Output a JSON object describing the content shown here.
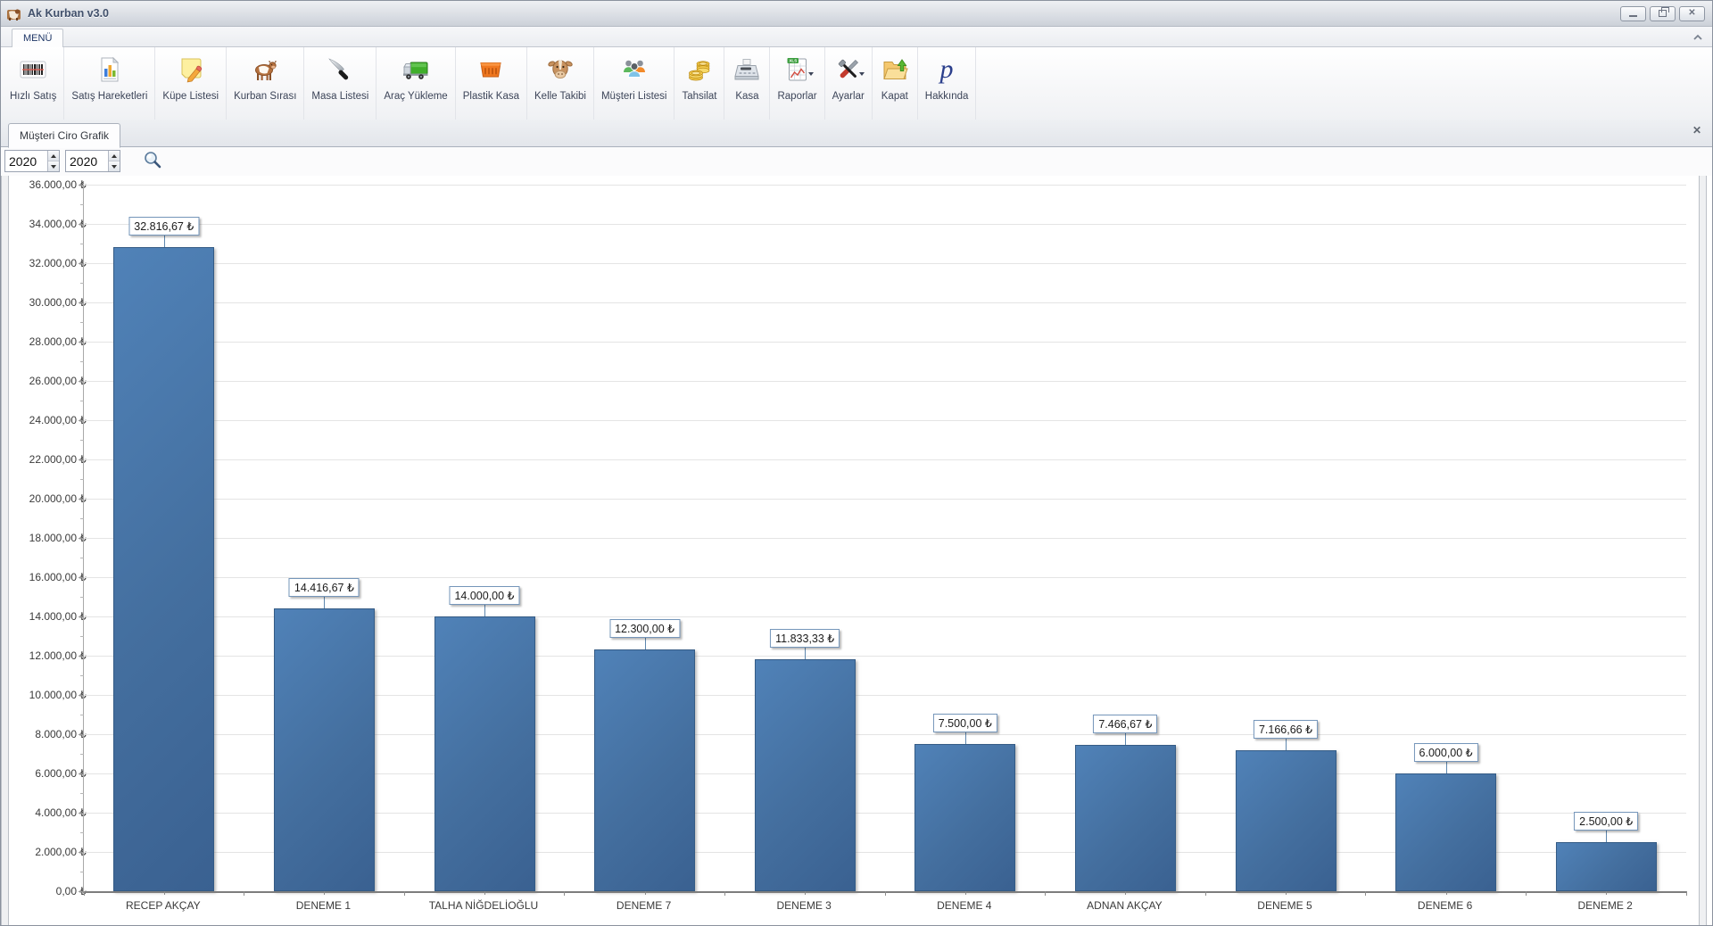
{
  "window": {
    "title": "Ak Kurban v3.0",
    "controls": [
      {
        "name": "minimize-button",
        "icon": "minimize-icon"
      },
      {
        "name": "maximize-button",
        "icon": "maximize-icon"
      },
      {
        "name": "close-button",
        "icon": "close-icon"
      }
    ]
  },
  "menu": {
    "label": "MENÜ",
    "collapse_icon": "chevron-up-icon"
  },
  "toolbar": {
    "items": [
      {
        "key": "hizli-satis",
        "label": "Hızlı Satış",
        "icon": "barcode-icon",
        "dropdown": false
      },
      {
        "key": "satis-hareketleri",
        "label": "Satış Hareketleri",
        "icon": "chart-report-icon",
        "dropdown": false
      },
      {
        "key": "kupe-listesi",
        "label": "Küpe Listesi",
        "icon": "note-pencil-icon",
        "dropdown": false
      },
      {
        "key": "kurban-sirasi",
        "label": "Kurban Sırası",
        "icon": "cow-icon",
        "dropdown": false
      },
      {
        "key": "masa-listesi",
        "label": "Masa Listesi",
        "icon": "knife-icon",
        "dropdown": false
      },
      {
        "key": "arac-yukleme",
        "label": "Araç Yükleme",
        "icon": "truck-icon",
        "dropdown": false
      },
      {
        "key": "plastik-kasa",
        "label": "Plastik Kasa",
        "icon": "crate-icon",
        "dropdown": false
      },
      {
        "key": "kelle-takibi",
        "label": "Kelle Takibi",
        "icon": "cow-head-icon",
        "dropdown": false
      },
      {
        "key": "musteri-listesi",
        "label": "Müşteri Listesi",
        "icon": "people-icon",
        "dropdown": false
      },
      {
        "key": "tahsilat",
        "label": "Tahsilat",
        "icon": "coins-icon",
        "dropdown": false
      },
      {
        "key": "kasa",
        "label": "Kasa",
        "icon": "cash-register-icon",
        "dropdown": false
      },
      {
        "key": "raporlar",
        "label": "Raporlar",
        "icon": "spreadsheet-icon",
        "dropdown": true
      },
      {
        "key": "ayarlar",
        "label": "Ayarlar",
        "icon": "tools-icon",
        "dropdown": true
      },
      {
        "key": "kapat",
        "label": "Kapat",
        "icon": "folder-up-icon",
        "dropdown": false
      },
      {
        "key": "hakkinda",
        "label": "Hakkında",
        "icon": "letter-p-icon",
        "dropdown": false
      }
    ]
  },
  "tabs": {
    "active_label": "Müşteri Ciro Grafik",
    "close_icon": "✕"
  },
  "filters": {
    "year_from": "2020",
    "year_to": "2020",
    "search_icon": "magnifier-icon"
  },
  "chart_data": {
    "type": "bar",
    "title": "",
    "xlabel": "",
    "ylabel": "",
    "legend": false,
    "grid": true,
    "ylim": [
      0,
      36000
    ],
    "y_major_step": 2000,
    "y_minor_step": 1000,
    "currency": "₺",
    "bar_color": "#4374ab",
    "categories": [
      "RECEP AKÇAY",
      "DENEME 1",
      "TALHA NİĞDELİOĞLU",
      "DENEME 7",
      "DENEME 3",
      "DENEME 4",
      "ADNAN AKÇAY",
      "DENEME 5",
      "DENEME 6",
      "DENEME 2"
    ],
    "values": [
      32816.67,
      14416.67,
      14000.0,
      12300.0,
      11833.33,
      7500.0,
      7466.67,
      7166.66,
      6000.0,
      2500.0
    ],
    "value_labels": [
      "32.816,67 ₺",
      "14.416,67 ₺",
      "14.000,00 ₺",
      "12.300,00 ₺",
      "11.833,33 ₺",
      "7.500,00 ₺",
      "7.466,67 ₺",
      "7.166,66 ₺",
      "6.000,00 ₺",
      "2.500,00 ₺"
    ],
    "y_tick_labels": [
      "0,00 ₺",
      "2.000,00 ₺",
      "4.000,00 ₺",
      "6.000,00 ₺",
      "8.000,00 ₺",
      "10.000,00 ₺",
      "12.000,00 ₺",
      "14.000,00 ₺",
      "16.000,00 ₺",
      "18.000,00 ₺",
      "20.000,00 ₺",
      "22.000,00 ₺",
      "24.000,00 ₺",
      "26.000,00 ₺",
      "28.000,00 ₺",
      "30.000,00 ₺",
      "32.000,00 ₺",
      "34.000,00 ₺",
      "36.000,00 ₺"
    ]
  }
}
